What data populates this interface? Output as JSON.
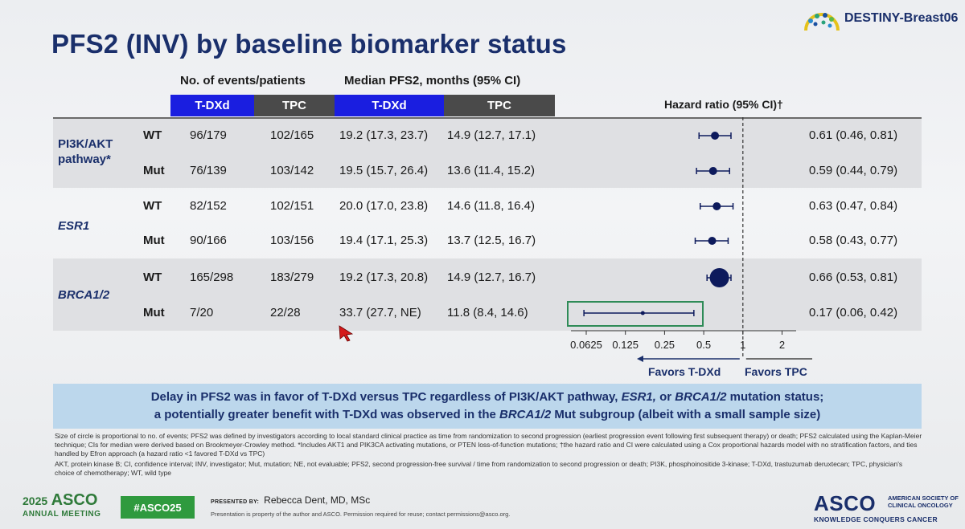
{
  "header": {
    "title": "PFS2 (INV) by baseline biomarker status",
    "trial_logo_text": "DESTINY-Breast06"
  },
  "column_groups": {
    "events": "No. of events/patients",
    "median": "Median PFS2, months (95% CI)",
    "hazard": "Hazard ratio (95% CI)†"
  },
  "column_heads": [
    "T-DXd",
    "TPC",
    "T-DXd",
    "TPC"
  ],
  "groups": [
    {
      "label_line1": "PI3K/AKT",
      "label_line2": "pathway*"
    },
    {
      "label_line1": "ESR1",
      "label_line2": ""
    },
    {
      "label_line1": "BRCA1/2",
      "label_line2": ""
    }
  ],
  "rows": [
    {
      "sub": "WT",
      "tdxd_events": "96/179",
      "tpc_events": "102/165",
      "tdxd_median": "19.2 (17.3, 23.7)",
      "tpc_median": "14.9 (12.7, 17.1)",
      "hr_text": "0.61 (0.46, 0.81)",
      "hr": 0.61,
      "lo": 0.46,
      "hi": 0.81,
      "size": 1
    },
    {
      "sub": "Mut",
      "tdxd_events": "76/139",
      "tpc_events": "103/142",
      "tdxd_median": "19.5 (15.7, 26.4)",
      "tpc_median": "13.6 (11.4, 15.2)",
      "hr_text": "0.59 (0.44, 0.79)",
      "hr": 0.59,
      "lo": 0.44,
      "hi": 0.79,
      "size": 1
    },
    {
      "sub": "WT",
      "tdxd_events": "82/152",
      "tpc_events": "102/151",
      "tdxd_median": "20.0 (17.0, 23.8)",
      "tpc_median": "14.6 (11.8, 16.4)",
      "hr_text": "0.63 (0.47, 0.84)",
      "hr": 0.63,
      "lo": 0.47,
      "hi": 0.84,
      "size": 1
    },
    {
      "sub": "Mut",
      "tdxd_events": "90/166",
      "tpc_events": "103/156",
      "tdxd_median": "19.4 (17.1, 25.3)",
      "tpc_median": "13.7 (12.5, 16.7)",
      "hr_text": "0.58 (0.43, 0.77)",
      "hr": 0.58,
      "lo": 0.43,
      "hi": 0.77,
      "size": 1
    },
    {
      "sub": "WT",
      "tdxd_events": "165/298",
      "tpc_events": "183/279",
      "tdxd_median": "19.2 (17.3, 20.8)",
      "tpc_median": "14.9 (12.7, 16.7)",
      "hr_text": "0.66 (0.53, 0.81)",
      "hr": 0.66,
      "lo": 0.53,
      "hi": 0.81,
      "size": 2.4
    },
    {
      "sub": "Mut",
      "tdxd_events": "7/20",
      "tpc_events": "22/28",
      "tdxd_median": "33.7 (27.7, NE)",
      "tpc_median": "11.8 (8.4, 14.6)",
      "hr_text": "0.17 (0.06, 0.42)",
      "hr": 0.17,
      "lo": 0.06,
      "hi": 0.42,
      "size": 0.5
    }
  ],
  "axis": {
    "ticks": [
      0.0625,
      0.125,
      0.25,
      0.5,
      1,
      2
    ],
    "tick_labels": [
      "0.0625",
      "0.125",
      "0.25",
      "0.5",
      "1",
      "2"
    ],
    "favors_left": "Favors T-DXd",
    "favors_right": "Favors TPC"
  },
  "conclusion": {
    "line1_a": "Delay in PFS2 was in favor of T-DXd versus TPC regardless of PI3K/AKT pathway, ",
    "line1_b": "ESR1,",
    "line1_c": " or ",
    "line1_d": "BRCA1/2",
    "line1_e": " mutation status;",
    "line2_a": "a potentially greater benefit with T-DXd was observed in the ",
    "line2_b": "BRCA1/2",
    "line2_c": " Mut subgroup (albeit with a small sample size)"
  },
  "footnotes": {
    "para1": "Size of circle is proportional to no. of events; PFS2 was defined by investigators according to local standard clinical practice as time from randomization to second progression (earliest progression event following first subsequent therapy) or death; PFS2 calculated using the Kaplan-Meier technique; CIs for median were derived based on Brookmeyer-Crowley method. *Includes AKT1 and PIK3CA activating mutations, or PTEN loss-of-function mutations; †the hazard ratio and CI were calculated using a Cox proportional hazards model with no stratification factors, and ties handled by Efron approach (a hazard ratio <1 favored T-DXd vs TPC)",
    "para2": "AKT, protein kinase B; CI, confidence interval; INV, investigator; Mut, mutation; NE, not evaluable; PFS2, second progression-free survival / time from randomization to second progression or death; PI3K, phosphoinositide 3-kinase; T-DXd, trastuzumab deruxtecan; TPC, physician's choice of chemotherapy; WT, wild type"
  },
  "footer": {
    "year": "2025",
    "asco": "ASCO",
    "meeting": "ANNUAL MEETING",
    "hashtag": "#ASCO25",
    "presented_by_label": "PRESENTED BY:",
    "presenter": "Rebecca Dent, MD, MSc",
    "copyright": "Presentation is property of the author and ASCO. Permission required for reuse; contact permissions@asco.org.",
    "asco_logo": "ASCO",
    "asco_side": "AMERICAN SOCIETY OF CLINICAL ONCOLOGY",
    "asco_tagline": "KNOWLEDGE CONQUERS CANCER"
  },
  "colors": {
    "title": "#1a2f6b",
    "tdxd_head": "#1a1ee0",
    "tpc_head": "#4a4a4a",
    "marker": "#0d1a5c",
    "highlight_box": "#2e8b57",
    "conclusion_bg": "#bcd7ec",
    "asco_green": "#2f9a3e"
  }
}
